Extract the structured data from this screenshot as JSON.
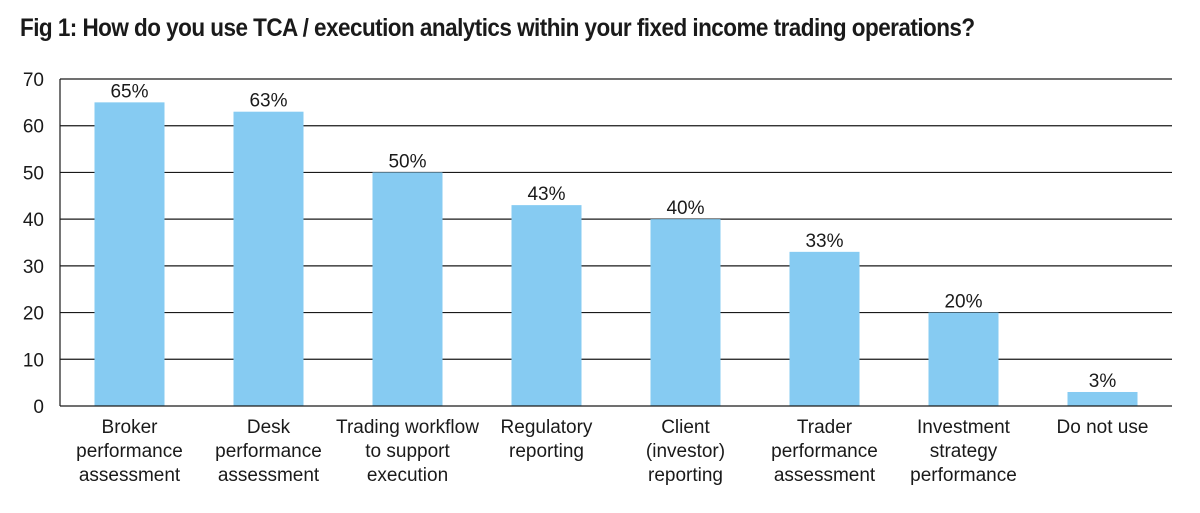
{
  "chart_data": {
    "type": "bar",
    "title": "Fig 1: How do you use TCA / execution analytics within your fixed income trading operations?",
    "xlabel": "",
    "ylabel": "",
    "ylim": [
      0,
      70
    ],
    "yticks": [
      0,
      10,
      20,
      30,
      40,
      50,
      60,
      70
    ],
    "grid": true,
    "legend": "none",
    "bar_color": "#86cbf2",
    "categories": [
      [
        "Broker",
        "performance",
        "assessment"
      ],
      [
        "Desk",
        "performance",
        "assessment"
      ],
      [
        "Trading workflow",
        "to support",
        "execution"
      ],
      [
        "Regulatory",
        "reporting"
      ],
      [
        "Client",
        "(investor)",
        "reporting"
      ],
      [
        "Trader",
        "performance",
        "assessment"
      ],
      [
        "Investment",
        "strategy",
        "performance"
      ],
      [
        "Do not use"
      ]
    ],
    "values": [
      65,
      63,
      50,
      43,
      40,
      33,
      20,
      3
    ],
    "data_labels": [
      "65%",
      "63%",
      "50%",
      "43%",
      "40%",
      "33%",
      "20%",
      "3%"
    ]
  }
}
